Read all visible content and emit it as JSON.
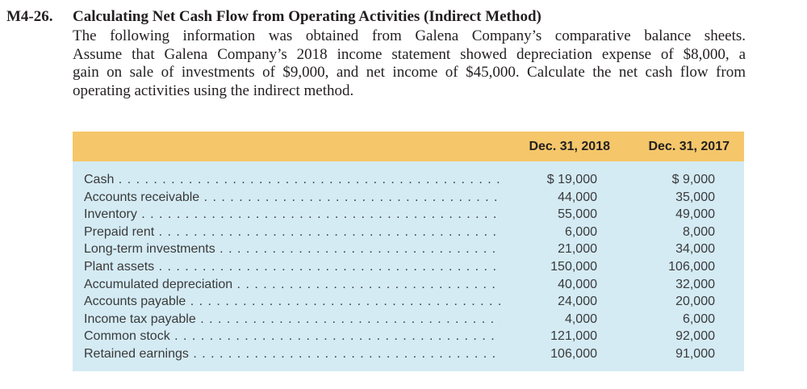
{
  "problem": {
    "number": "M4-26.",
    "title": "Calculating Net Cash Flow from Operating Activities (Indirect Method)",
    "body_lines": [
      "The following information was obtained from Galena Company’s comparative balance sheets.",
      "Assume that Galena Company’s 2018 income statement showed depreciation expense of $8,000, a",
      "gain on sale of investments of $9,000, and net income of $45,000. Calculate the net cash flow from",
      "operating activities using the indirect method."
    ]
  },
  "table": {
    "header_color": "#f5c76a",
    "body_color": "#d4ebf4",
    "columns": [
      "Dec. 31, 2018",
      "Dec. 31, 2017"
    ],
    "rows": [
      {
        "label": "Cash",
        "v2018": "$ 19,000",
        "v2017": "$ 9,000"
      },
      {
        "label": "Accounts receivable",
        "v2018": "44,000",
        "v2017": "35,000"
      },
      {
        "label": "Inventory",
        "v2018": "55,000",
        "v2017": "49,000"
      },
      {
        "label": "Prepaid rent",
        "v2018": "6,000",
        "v2017": "8,000"
      },
      {
        "label": "Long-term investments",
        "v2018": "21,000",
        "v2017": "34,000"
      },
      {
        "label": "Plant assets",
        "v2018": "150,000",
        "v2017": "106,000"
      },
      {
        "label": "Accumulated depreciation",
        "v2018": "40,000",
        "v2017": "32,000"
      },
      {
        "label": "Accounts payable",
        "v2018": "24,000",
        "v2017": "20,000"
      },
      {
        "label": "Income tax payable",
        "v2018": "4,000",
        "v2017": "6,000"
      },
      {
        "label": "Common stock",
        "v2018": "121,000",
        "v2017": "92,000"
      },
      {
        "label": "Retained earnings",
        "v2018": "106,000",
        "v2017": "91,000"
      }
    ]
  }
}
